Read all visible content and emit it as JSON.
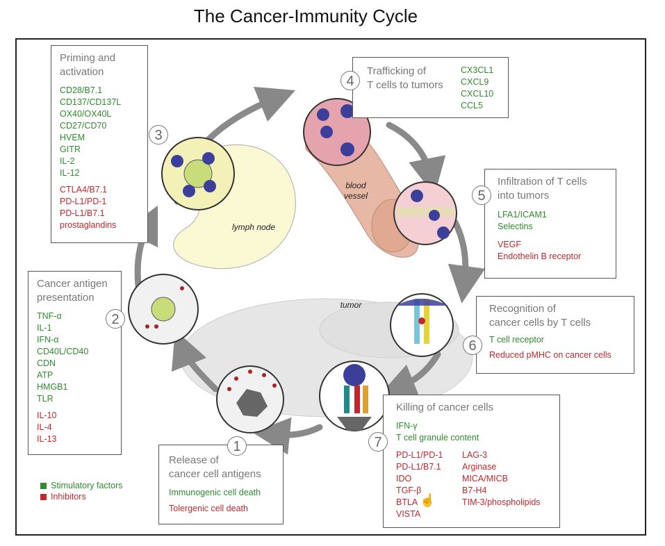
{
  "title": "The Cancer-Immunity Cycle",
  "steps": [
    {
      "num": "1",
      "title_line1": "Release of",
      "title_line2": "cancer cell antigens",
      "stimulatory": [
        "Immunogenic cell death"
      ],
      "inhibitors": [
        "Tolergenic cell death"
      ]
    },
    {
      "num": "2",
      "title_line1": "Cancer antigen",
      "title_line2": "presentation",
      "stimulatory": [
        "TNF-α",
        "IL-1",
        "IFN-α",
        "CD40L/CD40",
        "CDN",
        "ATP",
        "HMGB1",
        "TLR"
      ],
      "inhibitors": [
        "IL-10",
        "IL-4",
        "IL-13"
      ]
    },
    {
      "num": "3",
      "title_line1": "Priming and",
      "title_line2": "activation",
      "stimulatory": [
        "CD28/B7.1",
        "CD137/CD137L",
        "OX40/OX40L",
        "CD27/CD70",
        "HVEM",
        "GITR",
        "IL-2",
        "IL-12"
      ],
      "inhibitors": [
        "CTLA4/B7.1",
        "PD-L1/PD-1",
        "PD-L1/B7.1",
        "prostaglandins"
      ]
    },
    {
      "num": "4",
      "title_line1": "Trafficking of",
      "title_line2": "T cells to tumors",
      "stimulatory": [
        "CX3CL1",
        "CXCL9",
        "CXCL10",
        "CCL5"
      ],
      "inhibitors": []
    },
    {
      "num": "5",
      "title_line1": "Infiltration of T cells",
      "title_line2": "into tumors",
      "stimulatory": [
        "LFA1/ICAM1",
        "Selectins"
      ],
      "inhibitors": [
        "VEGF",
        "Endothelin B receptor"
      ]
    },
    {
      "num": "6",
      "title_line1": "Recognition of",
      "title_line2": "cancer cells by T cells",
      "stimulatory": [
        "T cell receptor"
      ],
      "inhibitors": [
        "Reduced pMHC on cancer cells"
      ]
    },
    {
      "num": "7",
      "title_line1": "Killing of cancer cells",
      "title_line2": "",
      "stimulatory": [
        "IFN-γ",
        "T cell granule content"
      ],
      "inhibitors_col1": [
        "PD-L1/PD-1",
        "PD-L1/B7.1",
        "IDO",
        "TGF-β",
        "BTLA",
        "VISTA"
      ],
      "inhibitors_col2": [
        "LAG-3",
        "Arginase",
        "MICA/MICB",
        "B7-H4",
        "TIM-3/phospholipids"
      ]
    }
  ],
  "labels": {
    "lymph_node": "lymph node",
    "blood_vessel_1": "blood",
    "blood_vessel_2": "vessel",
    "tumor": "tumor"
  },
  "legend": {
    "stimulatory": "Stimulatory factors",
    "inhibitors": "Inhibitors",
    "stimulatory_color": "#2e8b2e",
    "inhibitors_color": "#c0282d"
  }
}
